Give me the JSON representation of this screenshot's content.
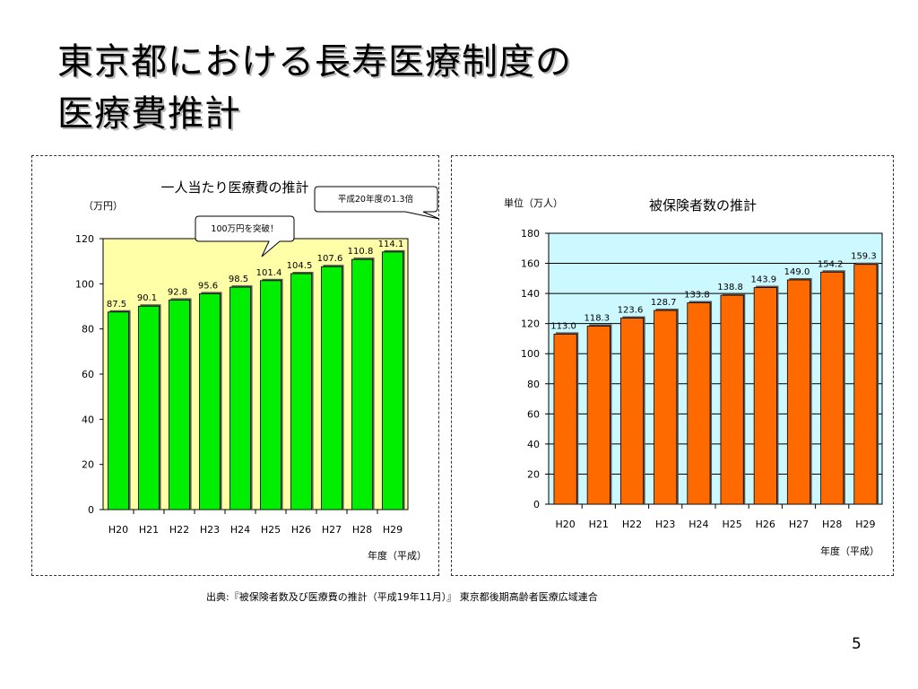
{
  "slide": {
    "title_line1": "東京都における長寿医療制度の",
    "title_line2": "医療費推計",
    "source": "出典:『被保険者数及び医療費の推計（平成19年11月）』 東京都後期高齢者医療広域連合",
    "page_number": "5"
  },
  "colors": {
    "left_bar": "#00ee00",
    "left_plot_bg": "#ffffa8",
    "right_bar": "#ff6a00",
    "right_plot_bg": "#ccf8ff"
  },
  "chart_data": [
    {
      "type": "bar",
      "title": "一人当たり医療費の推計",
      "ylabel": "（万円）",
      "xlabel": "年度（平成）",
      "categories": [
        "H20",
        "H21",
        "H22",
        "H23",
        "H24",
        "H25",
        "H26",
        "H27",
        "H28",
        "H29"
      ],
      "values": [
        87.5,
        90.1,
        92.8,
        95.6,
        98.5,
        101.4,
        104.5,
        107.6,
        110.8,
        114.1
      ],
      "value_labels": [
        "87.5",
        "90.1",
        "92.8",
        "95.6",
        "98.5",
        "101.4",
        "104.5",
        "107.6",
        "110.8",
        "114.1"
      ],
      "ylim": [
        0,
        120
      ],
      "yticks": [
        "0",
        "20",
        "40",
        "60",
        "80",
        "100",
        "120"
      ],
      "grid": false,
      "annotations": [
        "100万円を突破！",
        "平成20年度の1.3倍"
      ]
    },
    {
      "type": "bar",
      "title": "被保険者数の推計",
      "ylabel": "単位（万人）",
      "xlabel": "年度（平成）",
      "categories": [
        "H20",
        "H21",
        "H22",
        "H23",
        "H24",
        "H25",
        "H26",
        "H27",
        "H28",
        "H29"
      ],
      "values": [
        113.0,
        118.3,
        123.6,
        128.7,
        133.8,
        138.8,
        143.9,
        149.0,
        154.2,
        159.3
      ],
      "value_labels": [
        "113.0",
        "118.3",
        "123.6",
        "128.7",
        "133.8",
        "138.8",
        "143.9",
        "149.0",
        "154.2",
        "159.3"
      ],
      "ylim": [
        0,
        180
      ],
      "yticks": [
        "0",
        "20",
        "40",
        "60",
        "80",
        "100",
        "120",
        "140",
        "160",
        "180"
      ],
      "grid": true
    }
  ]
}
